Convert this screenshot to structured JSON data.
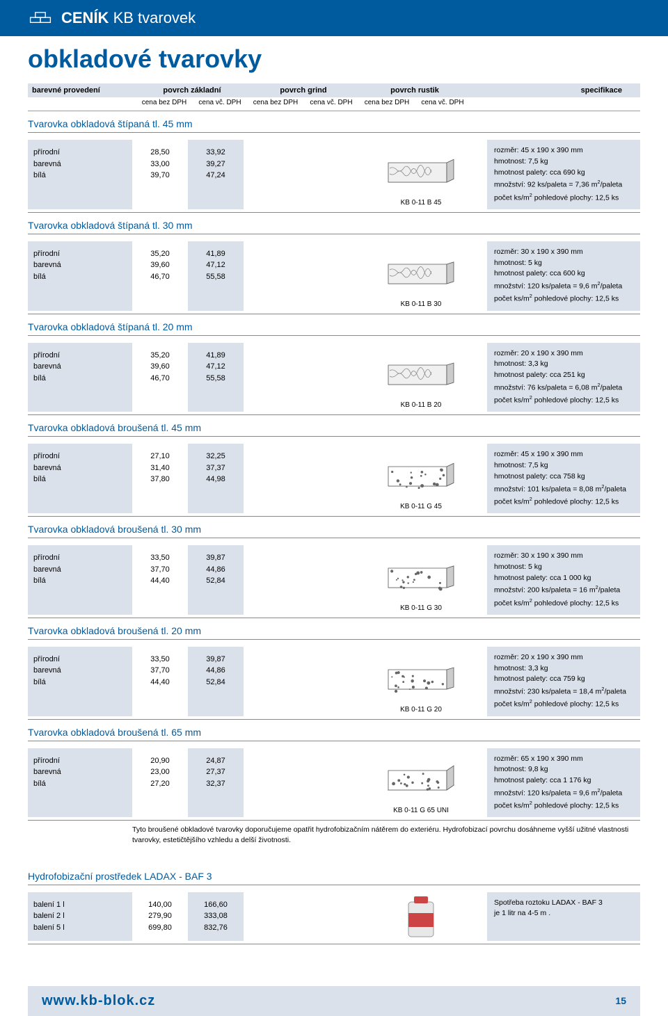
{
  "header": {
    "title_bold": "CENÍK",
    "title_rest": " KB tvarovek"
  },
  "page_title": "obkladové tvarovky",
  "columns": {
    "c1": "barevné provedení",
    "g1": "povrch základní",
    "g2": "povrch grind",
    "g3": "povrch rustik",
    "spec": "specifikace",
    "sub1": "cena bez DPH",
    "sub2": "cena vč. DPH"
  },
  "finishes": [
    "přírodní",
    "barevná",
    "bílá"
  ],
  "sections": [
    {
      "title": "Tvarovka obkladová štípaná tl. 45 mm",
      "code": "KB 0-11 B 45",
      "p1": [
        "28,50",
        "33,00",
        "39,70"
      ],
      "p2": [
        "33,92",
        "39,27",
        "47,24"
      ],
      "spec": [
        "rozměr: 45 x 190 x 390 mm",
        "hmotnost: 7,5 kg",
        "hmotnost palety: cca 690 kg",
        "množství: 92 ks/paleta = 7,36 m²/paleta",
        "počet ks/m² pohledové plochy: 12,5 ks"
      ],
      "th": 45
    },
    {
      "title": "Tvarovka obkladová štípaná tl. 30 mm",
      "code": "KB 0-11 B 30",
      "p1": [
        "35,20",
        "39,60",
        "46,70"
      ],
      "p2": [
        "41,89",
        "47,12",
        "55,58"
      ],
      "spec": [
        "rozměr: 30 x 190 x 390 mm",
        "hmotnost: 5 kg",
        "hmotnost palety: cca 600 kg",
        "množství: 120 ks/paleta = 9,6 m²/paleta",
        "počet ks/m² pohledové plochy: 12,5 ks"
      ],
      "th": 30
    },
    {
      "title": "Tvarovka obkladová štípaná tl. 20 mm",
      "code": "KB 0-11 B 20",
      "p1": [
        "35,20",
        "39,60",
        "46,70"
      ],
      "p2": [
        "41,89",
        "47,12",
        "55,58"
      ],
      "spec": [
        "rozměr: 20 x 190 x 390 mm",
        "hmotnost: 3,3 kg",
        "hmotnost palety: cca 251 kg",
        "množství: 76 ks/paleta = 6,08 m²/paleta",
        "počet ks/m² pohledové plochy: 12,5 ks"
      ],
      "th": 20
    },
    {
      "title": "Tvarovka obkladová broušená tl. 45 mm",
      "code": "KB 0-11 G 45",
      "p1": [
        "27,10",
        "31,40",
        "37,80"
      ],
      "p2": [
        "32,25",
        "37,37",
        "44,98"
      ],
      "spec": [
        "rozměr: 45 x 190 x 390 mm",
        "hmotnost: 7,5 kg",
        "hmotnost palety: cca 758 kg",
        "množství: 101 ks/paleta = 8,08 m²/paleta",
        "počet ks/m² pohledové plochy: 12,5 ks"
      ],
      "th": 45,
      "dots": true
    },
    {
      "title": "Tvarovka obkladová broušená tl. 30 mm",
      "code": "KB 0-11 G 30",
      "p1": [
        "33,50",
        "37,70",
        "44,40"
      ],
      "p2": [
        "39,87",
        "44,86",
        "52,84"
      ],
      "spec": [
        "rozměr: 30 x 190 x 390 mm",
        "hmotnost: 5 kg",
        "hmotnost palety: cca 1 000 kg",
        "množství: 200 ks/paleta = 16 m²/paleta",
        "počet ks/m² pohledové plochy: 12,5 ks"
      ],
      "th": 30,
      "dots": true
    },
    {
      "title": "Tvarovka obkladová broušená tl. 20 mm",
      "code": "KB 0-11 G 20",
      "p1": [
        "33,50",
        "37,70",
        "44,40"
      ],
      "p2": [
        "39,87",
        "44,86",
        "52,84"
      ],
      "spec": [
        "rozměr: 20 x 190 x 390 mm",
        "hmotnost: 3,3 kg",
        "hmotnost palety: cca 759 kg",
        "množství: 230 ks/paleta = 18,4 m²/paleta",
        "počet ks/m² pohledové plochy: 12,5 ks"
      ],
      "th": 20,
      "dots": true
    },
    {
      "title": "Tvarovka obkladová broušená tl. 65 mm",
      "code": "KB 0-11 G 65 UNI",
      "p1": [
        "20,90",
        "23,00",
        "27,20"
      ],
      "p2": [
        "24,87",
        "27,37",
        "32,37"
      ],
      "spec": [
        "rozměr: 65 x 190 x 390 mm",
        "hmotnost: 9,8 kg",
        "hmotnost palety: cca 1 176 kg",
        "množství: 120 ks/paleta = 9,6 m²/paleta",
        "počet ks/m² pohledové plochy: 12,5 ks"
      ],
      "th": 65,
      "dots": true
    }
  ],
  "footnote": "Tyto broušené obkladové tvarovky doporučujeme opatřit hydrofobizačním nátěrem do exteriéru. Hydrofobizací povrchu dosáhneme vyšší užitné vlastnosti tvarovky, estetičtějšího vzhledu a delší životnosti.",
  "ladax": {
    "title": "Hydrofobizační prostředek LADAX - BAF 3",
    "names": [
      "balení 1 l",
      "balení 2 l",
      "balení 5 l"
    ],
    "p1": [
      "140,00",
      "279,90",
      "699,80"
    ],
    "p2": [
      "166,60",
      "333,08",
      "832,76"
    ],
    "spec": [
      "Spotřeba roztoku LADAX - BAF 3",
      "je 1 litr na 4-5 m ."
    ]
  },
  "footer": {
    "url": "www.kb-blok.cz",
    "page": "15"
  },
  "colors": {
    "blue": "#005a9e",
    "grey": "#dbe1ea"
  }
}
